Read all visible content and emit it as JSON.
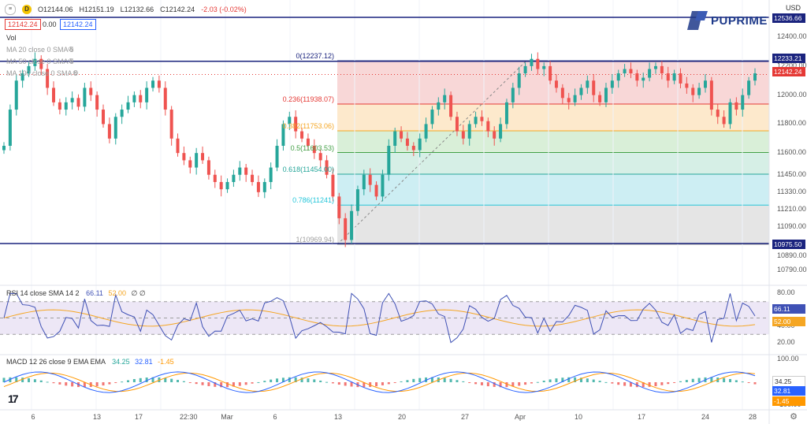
{
  "header": {
    "ohlc_open": "O12144.06",
    "ohlc_high": "H12151.19",
    "ohlc_low": "L12132.66",
    "ohlc_close": "C12142.24",
    "ohlc_change": "-2.03 (-0.02%)",
    "interval_label": "D",
    "bid": "12142.24",
    "spread": "0.00",
    "ask": "12142.24",
    "currency": "USD"
  },
  "brand": {
    "name": "PUPRIME"
  },
  "indicators": {
    "vol": "Vol",
    "ma20": "MA 20 close 0 SMA 5",
    "ma50": "MA 50 close 0 SMA 5",
    "ma100": "MA 100 close 0 SMA 5",
    "rsi_title": "RSI 14 close SMA 14 2",
    "rsi_val1": "66.11",
    "rsi_val2": "52.00",
    "rsi_extra": "∅ ∅",
    "macd_title": "MACD 12 26 close 9 EMA EMA",
    "macd_val1": "34.25",
    "macd_val2": "32.81",
    "macd_val3": "-1.45"
  },
  "price_tags": {
    "top": "12536.66",
    "fib_top": "12233.21",
    "current": "12142.24",
    "bottom": "10975.50",
    "rsi1": "66.11",
    "rsi2": "52.00",
    "macd1": "34.25",
    "macd2": "32.81",
    "macd3": "-1.45"
  },
  "colors": {
    "up": "#26a69a",
    "down": "#ef5350",
    "hline": "#1a237e",
    "rsi_line": "#3f51b5",
    "rsi_ma": "#f5a623",
    "macd_line": "#2962ff",
    "signal_line": "#ff9800"
  },
  "chart_data": {
    "type": "candlestick",
    "price_axis": [
      "12400.00",
      "12200.00",
      "12000.00",
      "11800.00",
      "11600.00",
      "11450.00",
      "11330.00",
      "11210.00",
      "11090.00",
      "10890.00",
      "10790.00"
    ],
    "x_labels": [
      "6",
      "13",
      "17",
      "22:30",
      "Mar",
      "6",
      "13",
      "20",
      "27",
      "Apr",
      "10",
      "17",
      "24",
      "28"
    ],
    "rsi_axis": [
      "80.00",
      "40.00",
      "20.00"
    ],
    "macd_axis": [
      "100.00",
      "0.00",
      "-100.00"
    ],
    "fib_levels": [
      {
        "label": "0(12237.12)",
        "level": 0,
        "price": 12237.12
      },
      {
        "label": "0.236(11938.07)",
        "level": 0.236,
        "price": 11938.07
      },
      {
        "label": "0.382(11753.06)",
        "level": 0.382,
        "price": 11753.06
      },
      {
        "label": "0.5(11603.53)",
        "level": 0.5,
        "price": 11603.53
      },
      {
        "label": "0.618(11454.00)",
        "level": 0.618,
        "price": 11454.0
      },
      {
        "label": "0.786(11241)",
        "level": 0.786,
        "price": 11241
      },
      {
        "label": "1(10969.94)",
        "level": 1,
        "price": 10969.94
      }
    ],
    "horizontal_lines": [
      12536.66,
      12233.21,
      10975.5
    ],
    "current_price": 12142.24,
    "closes": [
      11650,
      11900,
      12100,
      12150,
      12200,
      12250,
      12180,
      12050,
      11950,
      11900,
      11950,
      11980,
      11920,
      12050,
      12000,
      11900,
      11800,
      11700,
      11850,
      11900,
      11950,
      12000,
      11950,
      12050,
      12100,
      12050,
      11900,
      11700,
      11600,
      11550,
      11500,
      11600,
      11550,
      11450,
      11400,
      11350,
      11400,
      11450,
      11500,
      11450,
      11400,
      11330,
      11400,
      11500,
      11650,
      11800,
      11850,
      11750,
      11700,
      11650,
      11600,
      11550,
      11450,
      11300,
      11150,
      11000,
      11200,
      11350,
      11450,
      11380,
      11300,
      11450,
      11650,
      11750,
      11700,
      11650,
      11620,
      11700,
      11800,
      11900,
      11950,
      12000,
      11850,
      11750,
      11700,
      11800,
      11850,
      11820,
      11750,
      11700,
      11800,
      11950,
      12050,
      12150,
      12200,
      12250,
      12180,
      12200,
      12100,
      12050,
      11980,
      11950,
      12000,
      12050,
      12100,
      12000,
      11950,
      12050,
      12100,
      12150,
      12180,
      12150,
      12100,
      12120,
      12180,
      12200,
      12150,
      12100,
      12150,
      12080,
      12050,
      12000,
      12050,
      12100,
      11900,
      11850,
      11800,
      11950,
      11900,
      12000,
      12100,
      12150
    ]
  }
}
